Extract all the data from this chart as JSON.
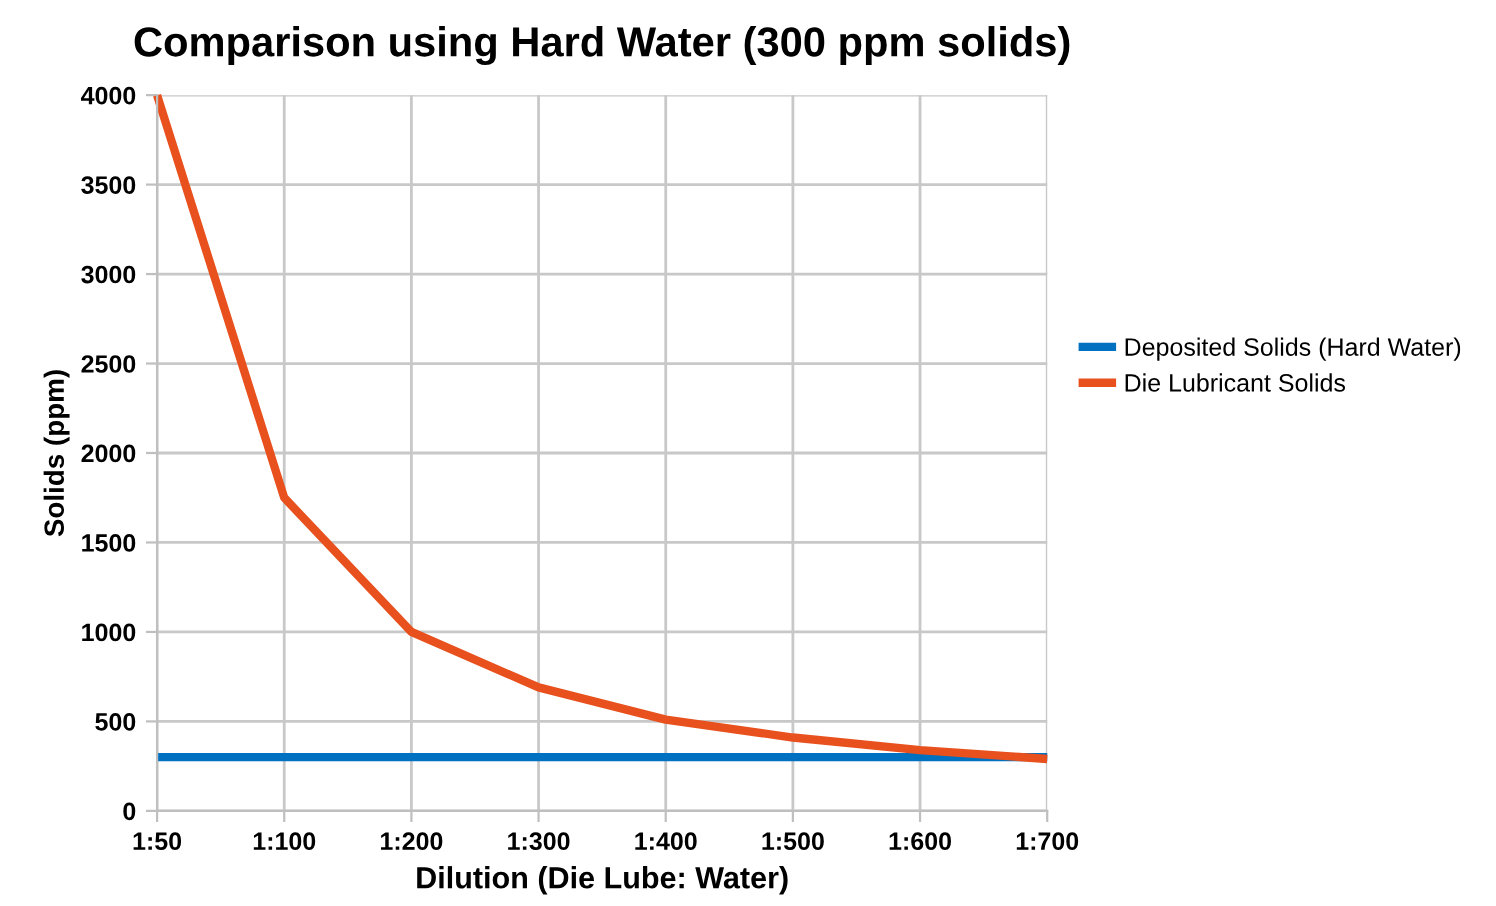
{
  "chart_data": {
    "type": "line",
    "title": "Comparison using Hard Water (300 ppm solids)",
    "xlabel": "Dilution (Die Lube: Water)",
    "ylabel": "Solids (ppm)",
    "categories": [
      "1:50",
      "1:100",
      "1:200",
      "1:300",
      "1:400",
      "1:500",
      "1:600",
      "1:700"
    ],
    "series": [
      {
        "name": "Deposited Solids (Hard Water)",
        "color": "#0070c0",
        "values": [
          300,
          300,
          300,
          300,
          300,
          300,
          300,
          300
        ]
      },
      {
        "name": "Die Lubricant Solids",
        "color": "#e8501e",
        "values": [
          4000,
          1750,
          1000,
          690,
          510,
          410,
          340,
          290
        ]
      }
    ],
    "ylim": [
      0,
      4000
    ],
    "yticks": [
      0,
      500,
      1000,
      1500,
      2000,
      2500,
      3000,
      3500,
      4000
    ],
    "grid": true,
    "legend": "right",
    "marker": "none",
    "line_style": "solid"
  }
}
